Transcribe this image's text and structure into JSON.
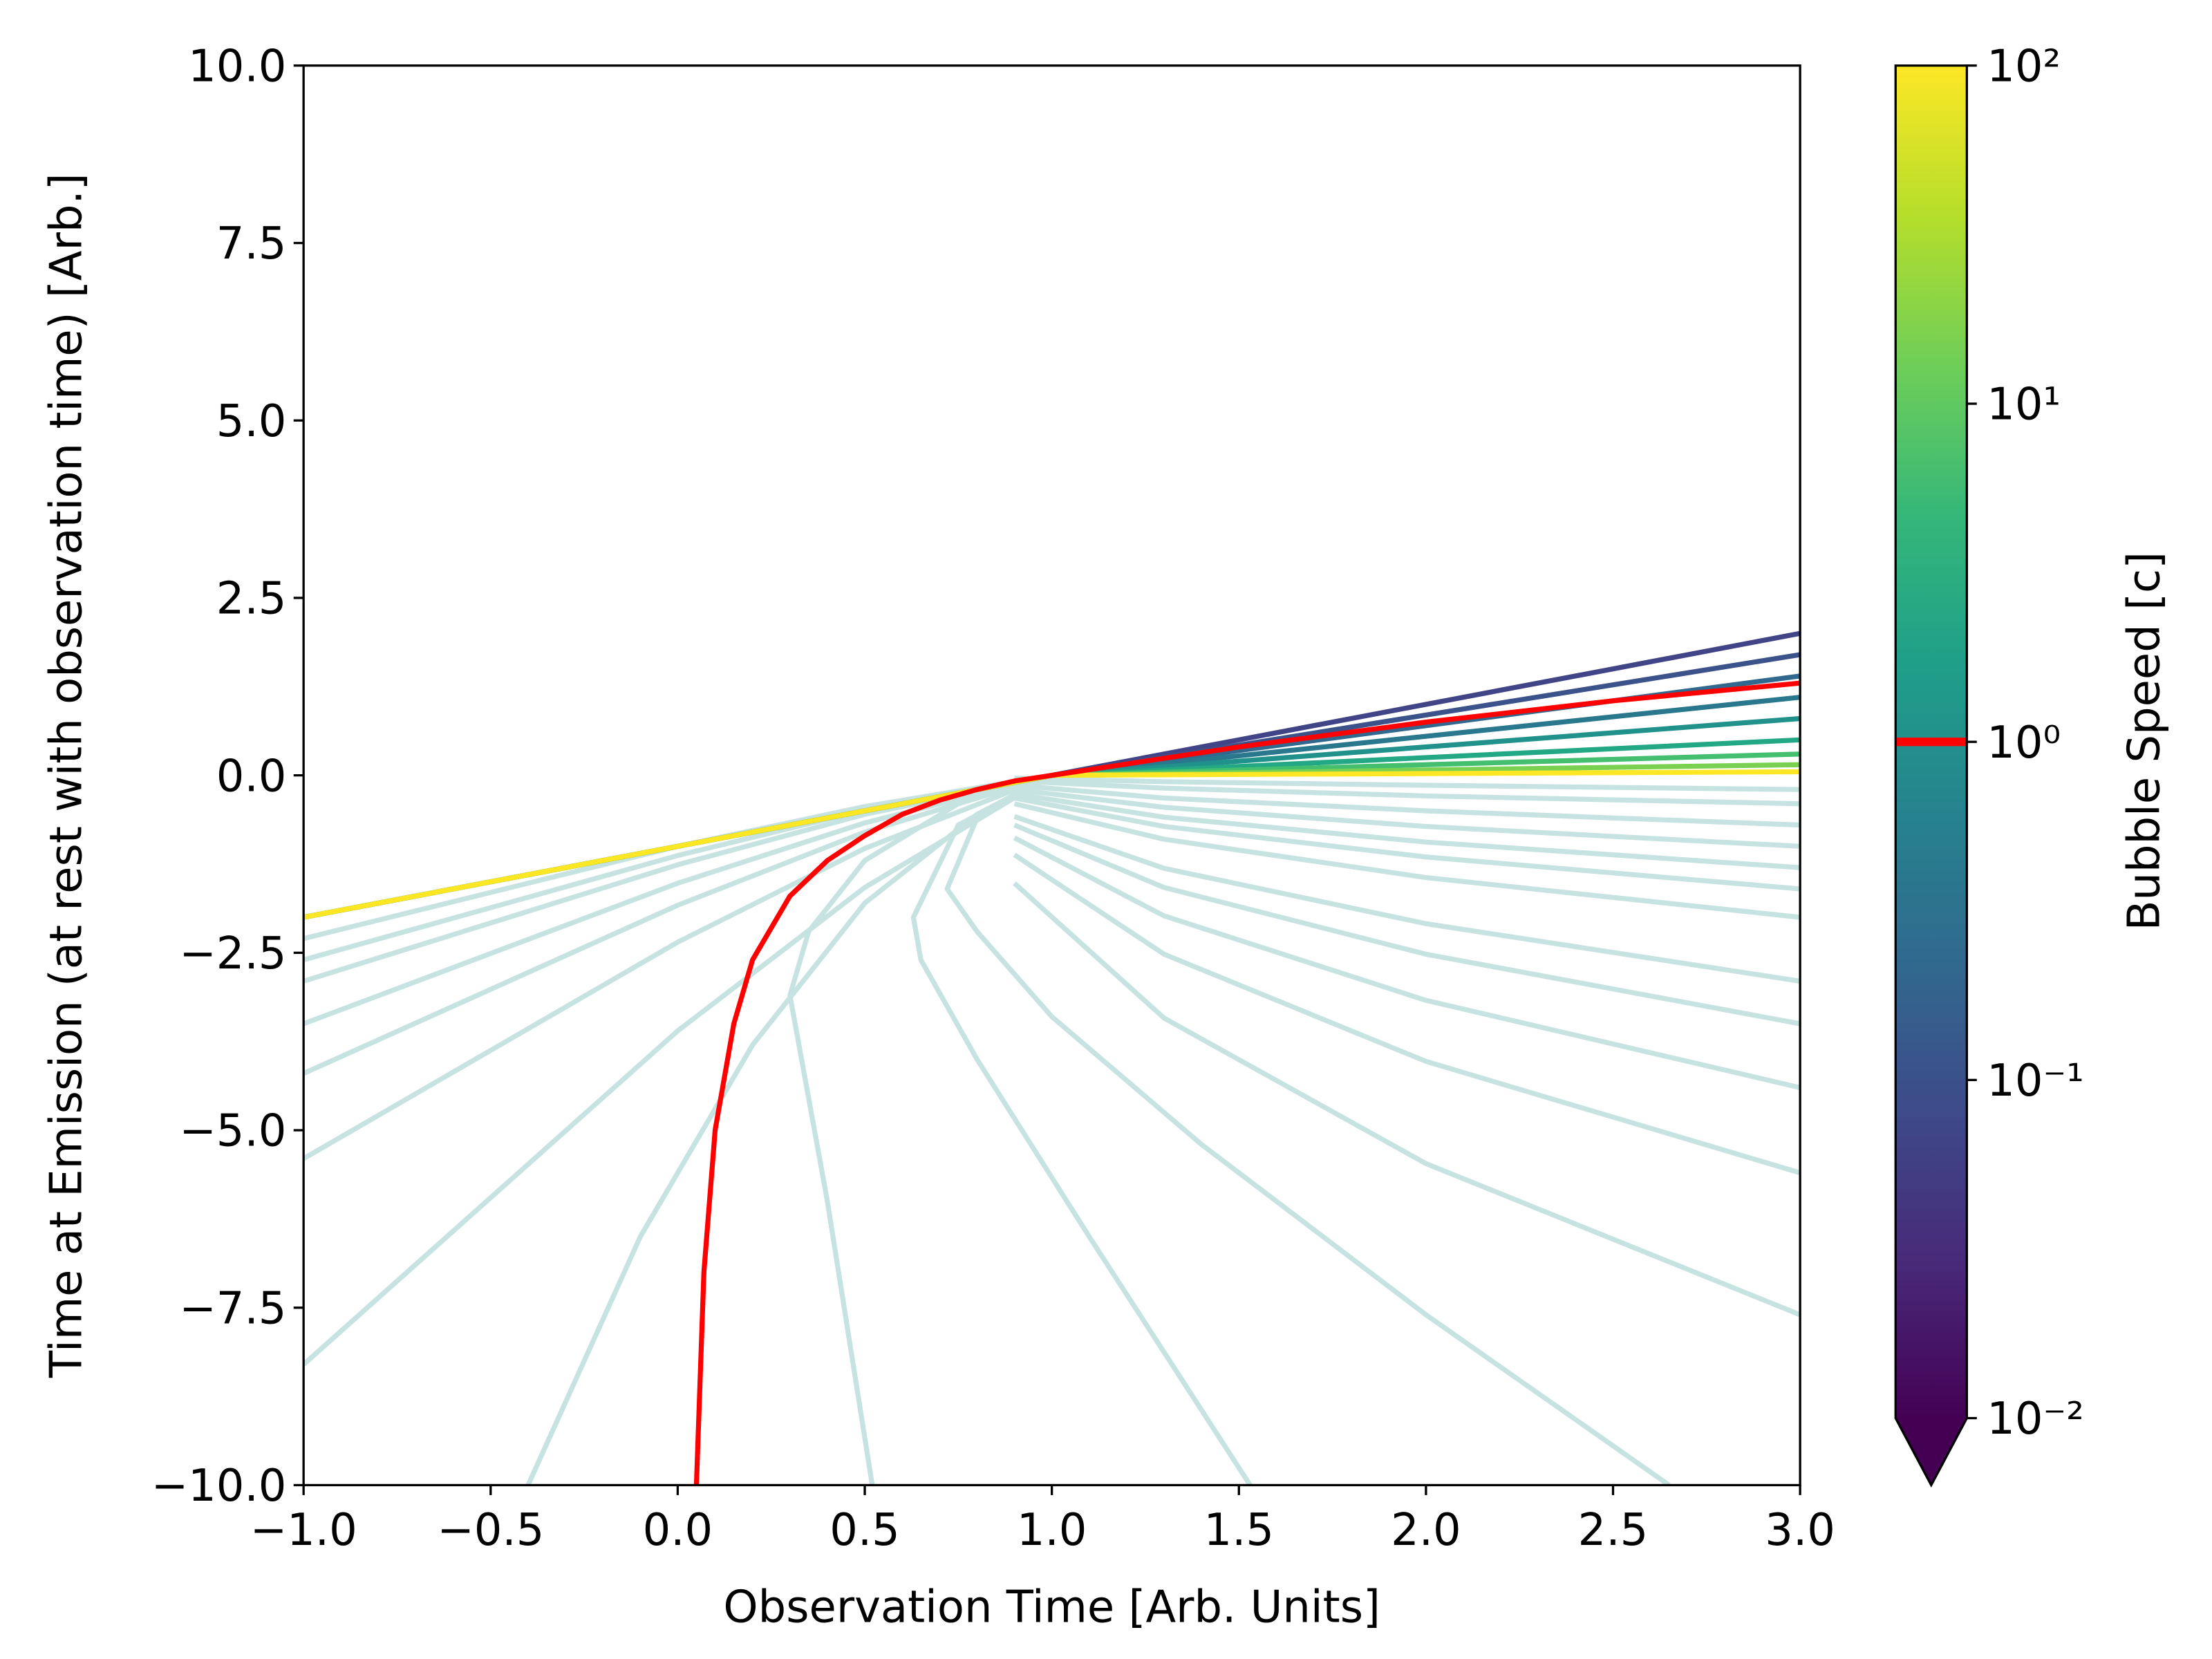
{
  "chart_data": {
    "type": "line",
    "xlabel": "Observation Time [Arb. Units]",
    "ylabel": "Time at Emission (at rest with observation time) [Arb.]",
    "xlim": [
      -1,
      3
    ],
    "ylim": [
      -10,
      10
    ],
    "xticks": [
      {
        "value": -1,
        "label": "−1.0"
      },
      {
        "value": -0.5,
        "label": "−0.5"
      },
      {
        "value": 0,
        "label": "0.0"
      },
      0.5,
      {
        "value": 1,
        "label": "1.0"
      },
      1.5,
      {
        "value": 2,
        "label": "2.0"
      },
      2.5,
      {
        "value": 3,
        "label": "3.0"
      }
    ],
    "yticks": [
      {
        "value": -10,
        "label": "−10.0"
      },
      {
        "value": -7.5,
        "label": "−7.5"
      },
      {
        "value": -5,
        "label": "−5.0"
      },
      {
        "value": -2.5,
        "label": "−2.5"
      },
      {
        "value": 0,
        "label": "0.0"
      },
      2.5,
      {
        "value": 5,
        "label": "5.0"
      },
      7.5,
      {
        "value": 10,
        "label": "10.0"
      }
    ],
    "grid": false,
    "series": [
      {
        "color": "#c6e3e1",
        "x": [
          -1,
          0,
          0.5,
          1
        ],
        "values": [
          -2.3,
          -1.0,
          -0.44,
          0
        ]
      },
      {
        "color": "#c6e3e1",
        "x": [
          -1,
          0,
          0.5,
          1
        ],
        "values": [
          -2.6,
          -1.13,
          -0.49,
          0
        ]
      },
      {
        "color": "#c6e3e1",
        "x": [
          -1,
          0,
          0.5,
          1
        ],
        "values": [
          -2.9,
          -1.26,
          -0.55,
          0
        ]
      },
      {
        "color": "#c6e3e1",
        "x": [
          -1,
          0,
          0.5,
          1
        ],
        "values": [
          -3.5,
          -1.52,
          -0.67,
          0
        ]
      },
      {
        "color": "#c6e3e1",
        "x": [
          -1,
          0,
          0.5,
          1
        ],
        "values": [
          -4.2,
          -1.83,
          -0.8,
          0
        ]
      },
      {
        "color": "#c6e3e1",
        "x": [
          -1,
          0,
          0.5,
          1
        ],
        "values": [
          -5.4,
          -2.35,
          -1.03,
          0
        ]
      },
      {
        "color": "#c6e3e1",
        "x": [
          -1,
          0,
          0.5,
          1
        ],
        "values": [
          -8.3,
          -3.6,
          -1.58,
          0
        ]
      },
      {
        "color": "#c6e3e1",
        "x": [
          -0.4,
          -0.1,
          0.2,
          0.5,
          0.8,
          1
        ],
        "values": [
          -10,
          -6.5,
          -3.8,
          -1.8,
          -0.55,
          0
        ]
      },
      {
        "color": "#c6e3e1",
        "x": [
          0.52,
          0.4,
          0.3,
          0.35,
          0.5,
          0.75,
          1
        ],
        "values": [
          -10,
          -6,
          -3.1,
          -2.2,
          -1.2,
          -0.4,
          0
        ]
      },
      {
        "color": "#c6e3e1",
        "x": [
          1.53,
          1.1,
          0.8,
          0.65,
          0.63,
          0.75,
          1
        ],
        "values": [
          -10,
          -6.5,
          -4,
          -2.6,
          -2,
          -0.7,
          0
        ]
      },
      {
        "color": "#c6e3e1",
        "x": [
          2.65,
          2,
          1.4,
          1,
          0.8,
          0.72,
          0.8,
          1
        ],
        "values": [
          -10,
          -7.6,
          -5.2,
          -3.4,
          -2.2,
          -1.6,
          -0.6,
          0
        ]
      },
      {
        "color": "#c6e3e1",
        "x": [
          0.9,
          1.3,
          2,
          3
        ],
        "values": [
          -1.52,
          -3.42,
          -5.47,
          -7.6
        ]
      },
      {
        "color": "#c6e3e1",
        "x": [
          0.9,
          1.3,
          2,
          3
        ],
        "values": [
          -1.12,
          -2.52,
          -4.03,
          -5.6
        ]
      },
      {
        "color": "#c6e3e1",
        "x": [
          0.9,
          1.3,
          2,
          3
        ],
        "values": [
          -0.88,
          -1.98,
          -3.17,
          -4.4
        ]
      },
      {
        "color": "#c6e3e1",
        "x": [
          0.9,
          1.3,
          2,
          3
        ],
        "values": [
          -0.7,
          -1.58,
          -2.52,
          -3.5
        ]
      },
      {
        "color": "#c6e3e1",
        "x": [
          0.9,
          1.3,
          2,
          3
        ],
        "values": [
          -0.58,
          -1.31,
          -2.09,
          -2.9
        ]
      },
      {
        "color": "#c6e3e1",
        "x": [
          0.9,
          1.3,
          2,
          3
        ],
        "values": [
          -0.4,
          -0.9,
          -1.44,
          -2.0
        ]
      },
      {
        "color": "#c6e3e1",
        "x": [
          0.9,
          1.3,
          2,
          3
        ],
        "values": [
          -0.32,
          -0.72,
          -1.15,
          -1.6
        ]
      },
      {
        "color": "#c6e3e1",
        "x": [
          0.9,
          1.3,
          2,
          3
        ],
        "values": [
          -0.26,
          -0.59,
          -0.94,
          -1.3
        ]
      },
      {
        "color": "#c6e3e1",
        "x": [
          0.9,
          1.3,
          2,
          3
        ],
        "values": [
          -0.2,
          -0.45,
          -0.72,
          -1.0
        ]
      },
      {
        "color": "#c6e3e1",
        "x": [
          0.9,
          1.3,
          2,
          3
        ],
        "values": [
          -0.14,
          -0.32,
          -0.5,
          -0.7
        ]
      },
      {
        "color": "#c6e3e1",
        "x": [
          0.9,
          1.3,
          2,
          3
        ],
        "values": [
          -0.08,
          -0.18,
          -0.29,
          -0.4
        ]
      },
      {
        "color": "#c6e3e1",
        "x": [
          0.9,
          1.3,
          2,
          3
        ],
        "values": [
          -0.04,
          -0.09,
          -0.14,
          -0.2
        ]
      },
      {
        "color": "#414487",
        "x": [
          -1,
          1,
          3
        ],
        "values": [
          -2,
          0,
          2.0
        ]
      },
      {
        "color": "#3b528b",
        "x": [
          -1,
          1,
          3
        ],
        "values": [
          -2,
          0,
          1.7
        ]
      },
      {
        "color": "#31688e",
        "x": [
          -1,
          1,
          3
        ],
        "values": [
          -2,
          0,
          1.4
        ]
      },
      {
        "color": "#2a788e",
        "x": [
          -1,
          1,
          3
        ],
        "values": [
          -2,
          0,
          1.1
        ]
      },
      {
        "color": "#21918c",
        "x": [
          -1,
          1,
          3
        ],
        "values": [
          -2,
          0,
          0.8
        ]
      },
      {
        "color": "#22a884",
        "x": [
          -1,
          1,
          3
        ],
        "values": [
          -2,
          0,
          0.5
        ]
      },
      {
        "color": "#44bf70",
        "x": [
          -1,
          1,
          3
        ],
        "values": [
          -2,
          0,
          0.3
        ]
      },
      {
        "color": "#7ad151",
        "x": [
          -1,
          1,
          3
        ],
        "values": [
          -2,
          0,
          0.15
        ]
      },
      {
        "color": "#fde725",
        "x": [
          -1,
          1,
          3
        ],
        "values": [
          -2,
          0,
          0.05
        ]
      },
      {
        "color": "#ff0000",
        "x": [
          0.05,
          0.07,
          0.1,
          0.15,
          0.2,
          0.3,
          0.4,
          0.5,
          0.6,
          0.7,
          0.8,
          0.9,
          1,
          1.25,
          1.5,
          2,
          2.5,
          3
        ],
        "values": [
          -10,
          -7,
          -5,
          -3.5,
          -2.6,
          -1.7,
          -1.2,
          -0.85,
          -0.55,
          -0.35,
          -0.2,
          -0.08,
          0,
          0.2,
          0.4,
          0.75,
          1.05,
          1.3
        ]
      }
    ],
    "colorbar": {
      "label": "Bubble Speed [c]",
      "scale": "log",
      "lim": [
        0.01,
        100
      ],
      "ticks": [
        {
          "value": 0.01,
          "label": "10⁻²"
        },
        {
          "value": 0.1,
          "label": "10⁻¹"
        },
        {
          "value": 1,
          "label": "10⁰"
        },
        {
          "value": 10,
          "label": "10¹"
        },
        {
          "value": 100,
          "label": "10²"
        }
      ],
      "colors": [
        "#440154",
        "#482878",
        "#3e4989",
        "#31688e",
        "#26828e",
        "#1f9e89",
        "#35b779",
        "#6ece58",
        "#b5de2b",
        "#fde725"
      ],
      "marker": 1,
      "marker_color": "#ff0000"
    }
  }
}
